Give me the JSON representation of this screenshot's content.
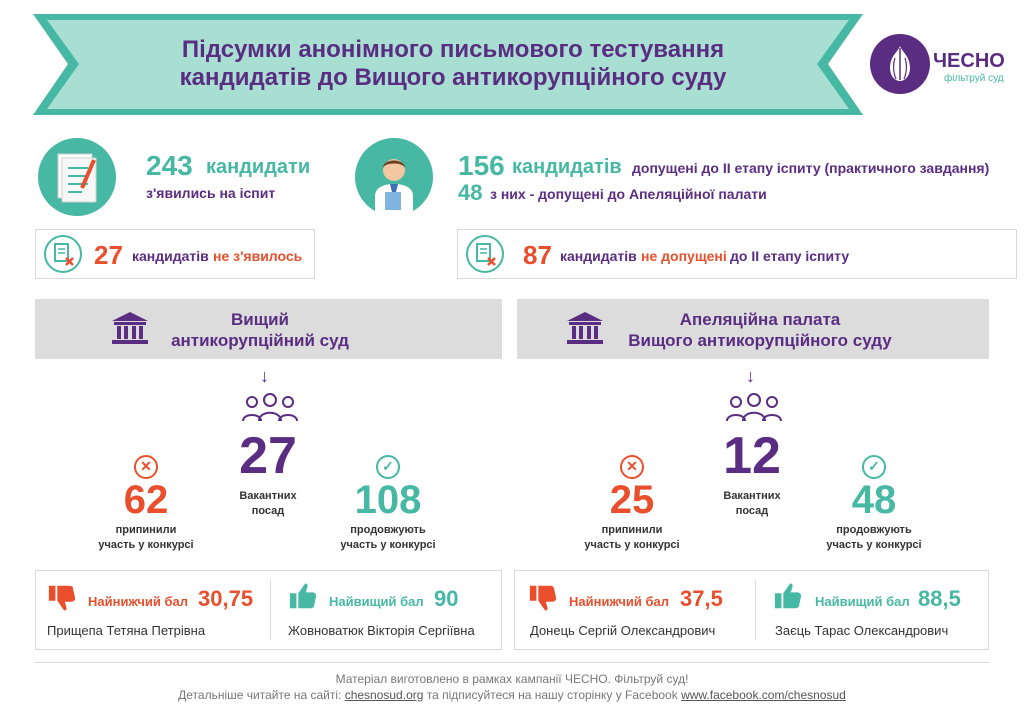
{
  "header": {
    "title_line1": "Підсумки анонімного письмового тестування",
    "title_line2": "кандидатів до Вищого антикорупційного суду"
  },
  "logo": {
    "name": "ЧЕСНО",
    "tagline": "фільтруй суд"
  },
  "stats": {
    "appeared_count": "243",
    "appeared_unit": "кандидати",
    "appeared_text": "з'явились на іспит",
    "not_appeared_count": "27",
    "not_appeared_unit": "кандидатів",
    "not_appeared_highlight": "не з'явилось",
    "admitted_count": "156",
    "admitted_unit": "кандидатів",
    "admitted_text": "допущені до II етапу іспиту (практичного завдання)",
    "appeal_count": "48",
    "appeal_text": "з них - допущені до Апеляційної палати",
    "not_admitted_count": "87",
    "not_admitted_unit": "кандидатів",
    "not_admitted_highlight": "не допущені",
    "not_admitted_rest": "до II етапу іспиту"
  },
  "courts": [
    {
      "title_line1": "Вищий",
      "title_line2": "антикорупційний суд",
      "vacancies": "27",
      "vacancies_label1": "Вакантних",
      "vacancies_label2": "посад",
      "stopped": "62",
      "stopped_label1": "припинили",
      "stopped_label2": "участь у конкурсі",
      "continue": "108",
      "continue_label1": "продовжують",
      "continue_label2": "участь у конкурсі",
      "lowest_label": "Найнижчий бал",
      "lowest_score": "30,75",
      "lowest_name": "Прищепа Тетяна Петрівна",
      "highest_label": "Найвищий бал",
      "highest_score": "90",
      "highest_name": "Жовноватюк Вікторія Сергіївна"
    },
    {
      "title_line1": "Апеляційна палата",
      "title_line2": "Вищого антикорупційного суду",
      "vacancies": "12",
      "vacancies_label1": "Вакантних",
      "vacancies_label2": "посад",
      "stopped": "25",
      "stopped_label1": "припинили",
      "stopped_label2": "участь у конкурсі",
      "continue": "48",
      "continue_label1": "продовжують",
      "continue_label2": "участь у конкурсі",
      "lowest_label": "Найнижчий бал",
      "lowest_score": "37,5",
      "lowest_name": "Донець Сергій Олександрович",
      "highest_label": "Найвищий бал",
      "highest_score": "88,5",
      "highest_name": "Заєць Тарас Олександрович"
    }
  ],
  "footer": {
    "line1": "Матеріал виготовлено в рамках кампанії ЧЕСНО. Фільтруй суд!",
    "line2_prefix": "Детальніше читайте на сайті:",
    "site_link": "chesnosud.org",
    "line2_middle": "та підписуйтеся на нашу сторінку у Facebook",
    "fb_link": "www.facebook.com/chesnosud"
  },
  "colors": {
    "teal": "#46b8a3",
    "purple": "#5a2d82",
    "red": "#e94f2c",
    "grey_banner": "#dcdcdc"
  }
}
